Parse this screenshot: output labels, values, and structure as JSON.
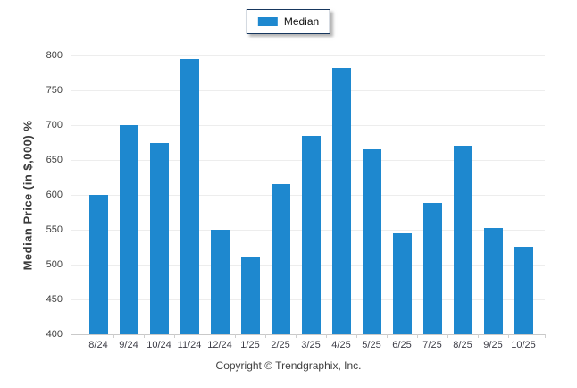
{
  "legend": {
    "label": "Median",
    "swatch_icon": "series-color-swatch"
  },
  "y_axis": {
    "title": "Median Price (in $,000) %"
  },
  "footer": {
    "text": "Copyright © Trendgraphix, Inc."
  },
  "colors": {
    "bar": "#1e88cf",
    "grid": "#ededed",
    "axis": "#c9c9c9",
    "legend_border": "#17375e",
    "tick_text": "#3f3f3f"
  },
  "chart_data": {
    "type": "bar",
    "title": "",
    "xlabel": "",
    "ylabel": "Median Price (in $,000) %",
    "categories": [
      "8/24",
      "9/24",
      "10/24",
      "11/24",
      "12/24",
      "1/25",
      "2/25",
      "3/25",
      "4/25",
      "5/25",
      "6/25",
      "7/25",
      "8/25",
      "9/25",
      "10/25"
    ],
    "series": [
      {
        "name": "Median",
        "values": [
          600,
          700,
          675,
          795,
          550,
          510,
          615,
          684,
          782,
          666,
          545,
          588,
          671,
          552,
          526
        ]
      }
    ],
    "ylim": [
      400,
      800
    ],
    "ytick_step": 50,
    "grid": true,
    "legend_position": "top-center"
  }
}
